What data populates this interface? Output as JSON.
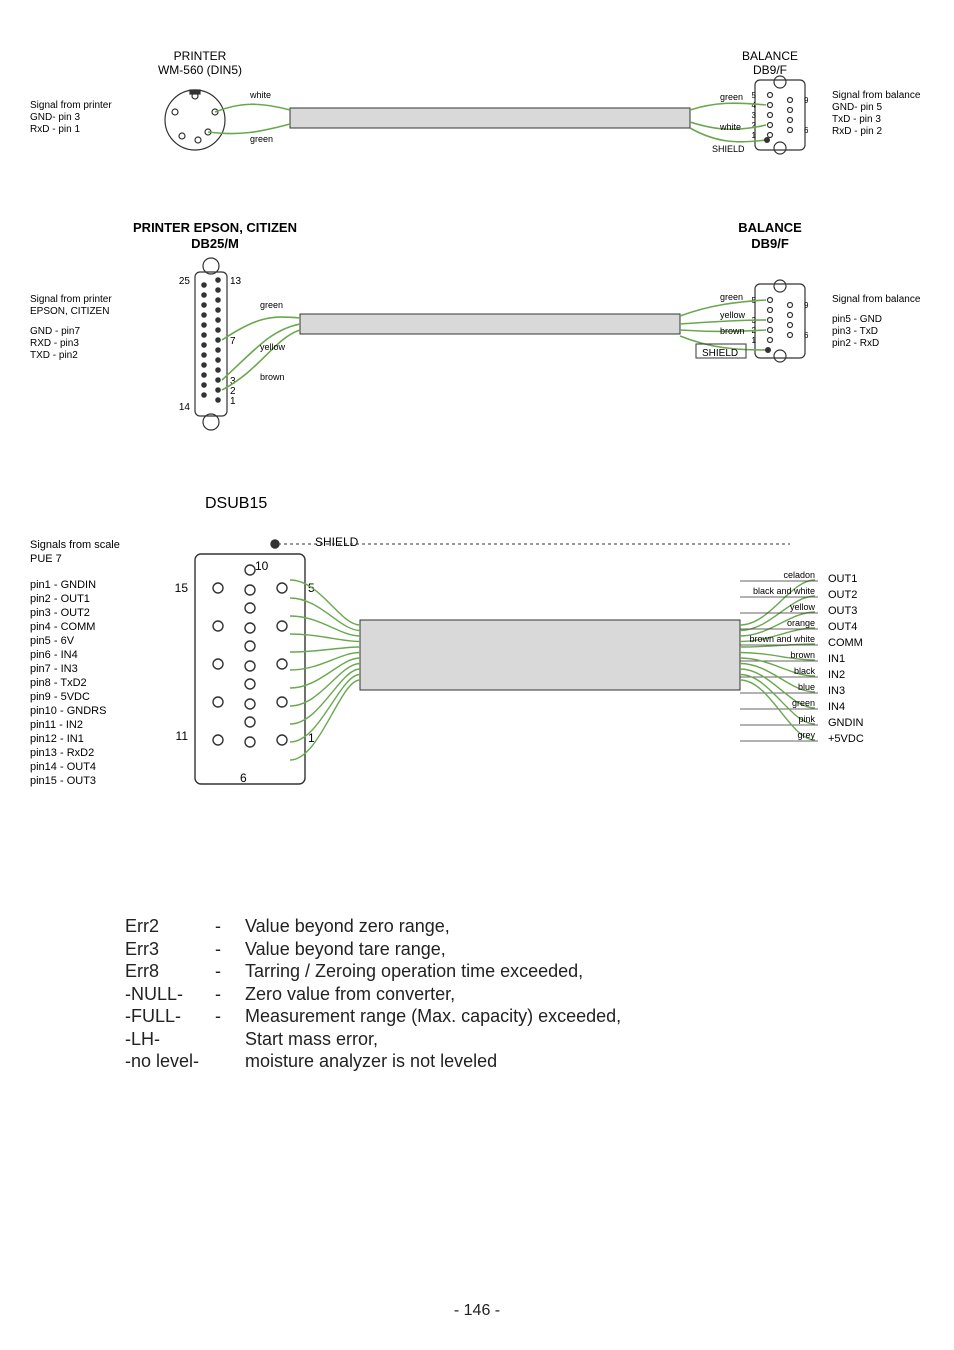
{
  "diagram1": {
    "printer_title1": "PRINTER",
    "printer_title2": "WM-560 (DIN5)",
    "balance_title1": "BALANCE",
    "balance_title2": "DB9/F",
    "left_label_title": "Signal from printer",
    "left_label_gnd": "GND- pin 3",
    "left_label_rxd": "RxD - pin 1",
    "right_label_title": "Signal from balance",
    "right_label_gnd": "GND- pin 5",
    "right_label_txd": "TxD - pin 3",
    "right_label_rxd": "RxD - pin 2",
    "wire_white": "white",
    "wire_green_l": "green",
    "wire_green_r": "green",
    "wire_white_r": "white",
    "shield": "SHIELD",
    "db9_pins": {
      "p5": "5",
      "p4": "4",
      "p3": "3",
      "p2": "2",
      "p1": "1",
      "p9": "9",
      "p6": "6"
    }
  },
  "diagram2": {
    "printer_title1": "PRINTER EPSON, CITIZEN",
    "printer_title2": "DB25/M",
    "balance_title1": "BALANCE",
    "balance_title2": "DB9/F",
    "left_label_title1": "Signal from printer",
    "left_label_title2": "EPSON, CITIZEN",
    "left_label_gnd": "GND - pin7",
    "left_label_rxd": "RXD  - pin3",
    "left_label_txd": "TXD - pin2",
    "right_label_title": "Signal from balance",
    "right_label_pin5": "pin5 - GND",
    "right_label_pin3": "pin3 - TxD",
    "right_label_pin2": "pin2 - RxD",
    "wire_green": "green",
    "wire_yellow": "yellow",
    "wire_brown": "brown",
    "wire_green_r": "green",
    "wire_yellow_r": "yellow",
    "wire_brown_r": "brown",
    "shield": "SHIELD",
    "db25_pins": {
      "p25": "25",
      "p14": "14",
      "p13": "13",
      "p7": "7",
      "p3": "3",
      "p2": "2",
      "p1": "1"
    },
    "db9_pins": {
      "p5": "5",
      "p3": "3",
      "p2": "2",
      "p1": "1",
      "p9": "9",
      "p6": "6"
    }
  },
  "diagram3": {
    "title": "DSUB15",
    "shield": "SHIELD",
    "left_label_title": "Signals from scale",
    "left_label_sub": "PUE 7",
    "pin_labels": [
      "pin1 - GNDIN",
      "pin2 - OUT1",
      "pin3 - OUT2",
      "pin4 - COMM",
      "pin5 - 6V",
      "pin6 - IN4",
      "pin7 - IN3",
      "pin8 - TxD2",
      "pin9 - 5VDC",
      "pin10 - GNDRS",
      "pin11 - IN2",
      "pin12 - IN1",
      "pin13 - RxD2",
      "pin14 - OUT4",
      "pin15 - OUT3"
    ],
    "conn_pins": {
      "p15": "15",
      "p11": "11",
      "p10": "10",
      "p6": "6",
      "p5": "5",
      "p1": "1"
    },
    "wire_rows": [
      {
        "color": "celadon",
        "sig": "OUT1"
      },
      {
        "color": "black and white",
        "sig": "OUT2"
      },
      {
        "color": "yellow",
        "sig": "OUT3"
      },
      {
        "color": "orange",
        "sig": "OUT4"
      },
      {
        "color": "brown and white",
        "sig": "COMM"
      },
      {
        "color": "brown",
        "sig": "IN1"
      },
      {
        "color": "black",
        "sig": "IN2"
      },
      {
        "color": "blue",
        "sig": "IN3"
      },
      {
        "color": "green",
        "sig": "IN4"
      },
      {
        "color": "pink",
        "sig": "GNDIN"
      },
      {
        "color": "grey",
        "sig": "+5VDC"
      }
    ]
  },
  "style": {
    "wire_color": "#6aa84f",
    "line_color": "#333333",
    "bundle_fill": "#d9d9d9"
  },
  "errors": [
    {
      "code": "Err2",
      "dash": "-",
      "desc": "Value beyond zero range,"
    },
    {
      "code": "Err3",
      "dash": "-",
      "desc": "Value beyond tare range,"
    },
    {
      "code": "Err8",
      "dash": "-",
      "desc": "Tarring / Zeroing operation time exceeded,"
    },
    {
      "code": "-NULL-",
      "dash": "-",
      "desc": "Zero value from converter,"
    },
    {
      "code": "-FULL-",
      "dash": "-",
      "desc": "Measurement range (Max. capacity) exceeded,"
    },
    {
      "code": "-LH-",
      "dash": "",
      "desc": "   Start mass error,"
    },
    {
      "code": "-no level-",
      "dash": "",
      "desc": "moisture analyzer is not leveled"
    }
  ],
  "page_number": "- 146 -"
}
